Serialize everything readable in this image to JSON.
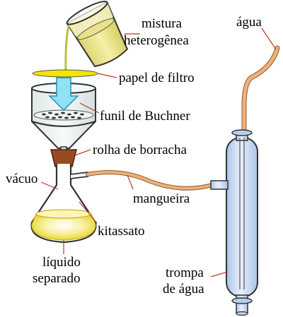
{
  "labels": {
    "mixture_line1": "mistura",
    "mixture_line2": "heterogênea",
    "filter_paper": "papel de filtro",
    "buchner_funnel": "funil de Buchner",
    "rubber_stopper": "rolha de borracha",
    "vacuum": "vácuo",
    "hose": "mangueira",
    "kitasato_flask": "kitassato",
    "liquid_line1": "líquido",
    "liquid_line2": "separado",
    "water": "água",
    "aspirator_line1": "trompa",
    "aspirator_line2": "de água"
  },
  "colors": {
    "mixture_fill": "#e8e28a",
    "filter_paper": "#f2e500",
    "funnel_body": "#eef3f3",
    "arrow": "#8fe3f2",
    "stopper": "#9a4a22",
    "liquid": "#f0e35a",
    "hose": "#efb07a",
    "aspirator": "#cfe0f4",
    "leader_line": "#c0392b"
  }
}
